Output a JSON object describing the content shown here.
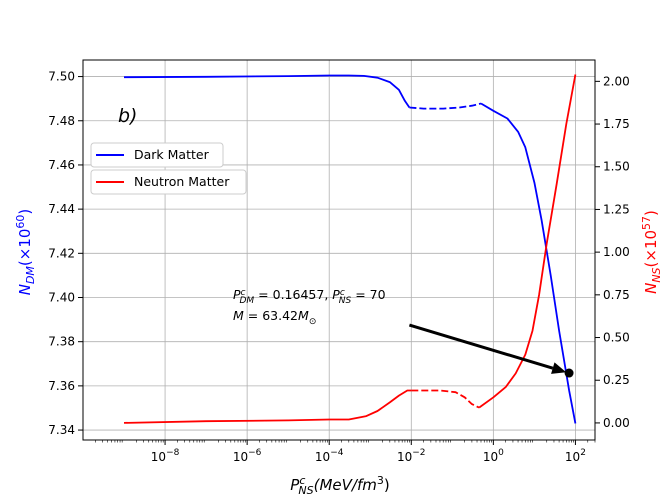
{
  "chart_data": {
    "type": "line",
    "panel_label": "b)",
    "xlabel": "P_NS^c (MeV/fm^3)",
    "x_scale": "log",
    "xlim": [
      1e-10,
      300
    ],
    "x_ticks": [
      1e-08,
      1e-06,
      0.0001,
      0.01,
      1,
      100
    ],
    "x_tick_labels": [
      {
        "base": "10",
        "exp": "−8"
      },
      {
        "base": "10",
        "exp": "−6"
      },
      {
        "base": "10",
        "exp": "−4"
      },
      {
        "base": "10",
        "exp": "−2"
      },
      {
        "base": "10",
        "exp": "0"
      },
      {
        "base": "10",
        "exp": "2"
      }
    ],
    "ylabel_left": {
      "main": "N",
      "sub": "DM",
      "rest": "(×10",
      "exp": "60",
      "close": ")"
    },
    "ylabel_right": {
      "main": "N",
      "sub": "NS",
      "rest": "(×10",
      "exp": "57",
      "close": ")"
    },
    "ylim_left": [
      7.3355,
      7.5075
    ],
    "ylim_right": [
      -0.1,
      2.125
    ],
    "y_ticks_left": [
      "7.34",
      "7.36",
      "7.38",
      "7.40",
      "7.42",
      "7.44",
      "7.46",
      "7.48",
      "7.50"
    ],
    "y_ticks_right": [
      "0.00",
      "0.25",
      "0.50",
      "0.75",
      "1.00",
      "1.25",
      "1.50",
      "1.75",
      "2.00"
    ],
    "grid": true,
    "legend_placement": "upper-left",
    "series": [
      {
        "name": "Dark Matter",
        "axis": "left",
        "color": "#0000ff",
        "segments": [
          {
            "style": "solid",
            "points": [
              [
                1e-09,
                7.4997
              ],
              [
                1e-07,
                7.4999
              ],
              [
                1e-05,
                7.5002
              ],
              [
                0.0001,
                7.5005
              ],
              [
                0.0003,
                7.5005
              ],
              [
                0.0007,
                7.5003
              ],
              [
                0.0015,
                7.4995
              ],
              [
                0.003,
                7.4975
              ],
              [
                0.005,
                7.494
              ],
              [
                0.007,
                7.489
              ],
              [
                0.009,
                7.486
              ]
            ]
          },
          {
            "style": "dashed",
            "points": [
              [
                0.009,
                7.486
              ],
              [
                0.02,
                7.4855
              ],
              [
                0.06,
                7.4855
              ],
              [
                0.15,
                7.486
              ],
              [
                0.3,
                7.4868
              ],
              [
                0.5,
                7.4878
              ]
            ]
          },
          {
            "style": "solid",
            "points": [
              [
                0.5,
                7.4878
              ],
              [
                1,
                7.4845
              ],
              [
                2.2,
                7.481
              ],
              [
                4,
                7.475
              ],
              [
                6,
                7.468
              ],
              [
                10,
                7.452
              ],
              [
                15,
                7.435
              ],
              [
                25,
                7.41
              ],
              [
                40,
                7.385
              ],
              [
                70,
                7.358
              ],
              [
                100,
                7.343
              ]
            ]
          }
        ]
      },
      {
        "name": "Neutron Matter",
        "axis": "right",
        "color": "#ff0000",
        "segments": [
          {
            "style": "solid",
            "points": [
              [
                1e-09,
                0.0
              ],
              [
                1e-07,
                0.01
              ],
              [
                1e-05,
                0.015
              ],
              [
                0.0001,
                0.02
              ],
              [
                0.0003,
                0.02
              ],
              [
                0.0008,
                0.04
              ],
              [
                0.0015,
                0.07
              ],
              [
                0.003,
                0.12
              ],
              [
                0.005,
                0.16
              ],
              [
                0.008,
                0.19
              ],
              [
                0.01,
                0.19
              ]
            ]
          },
          {
            "style": "dashed",
            "points": [
              [
                0.01,
                0.19
              ],
              [
                0.05,
                0.19
              ],
              [
                0.12,
                0.18
              ],
              [
                0.2,
                0.15
              ],
              [
                0.3,
                0.11
              ],
              [
                0.45,
                0.09
              ]
            ]
          },
          {
            "style": "solid",
            "points": [
              [
                0.45,
                0.09
              ],
              [
                1,
                0.15
              ],
              [
                2,
                0.21
              ],
              [
                3.5,
                0.29
              ],
              [
                6,
                0.4
              ],
              [
                9,
                0.54
              ],
              [
                13,
                0.75
              ],
              [
                20,
                1.05
              ],
              [
                35,
                1.4
              ],
              [
                60,
                1.75
              ],
              [
                100,
                2.04
              ]
            ]
          }
        ]
      }
    ],
    "annotation": {
      "line1": {
        "P1": "P",
        "sup1": "c",
        "sub1": "DM",
        "mid": " = 0.16457, ",
        "P2": "P",
        "sup2": "c",
        "sub2": "NS",
        "end": " = 70"
      },
      "line2": {
        "M": "M",
        "eq": " = 63.42",
        "M2": "M",
        "sub": "⊙"
      },
      "marker_point": {
        "x": 70,
        "y_left": 7.3658
      },
      "arrow_from": {
        "x": 0.009,
        "y_left": 7.3875
      }
    }
  }
}
